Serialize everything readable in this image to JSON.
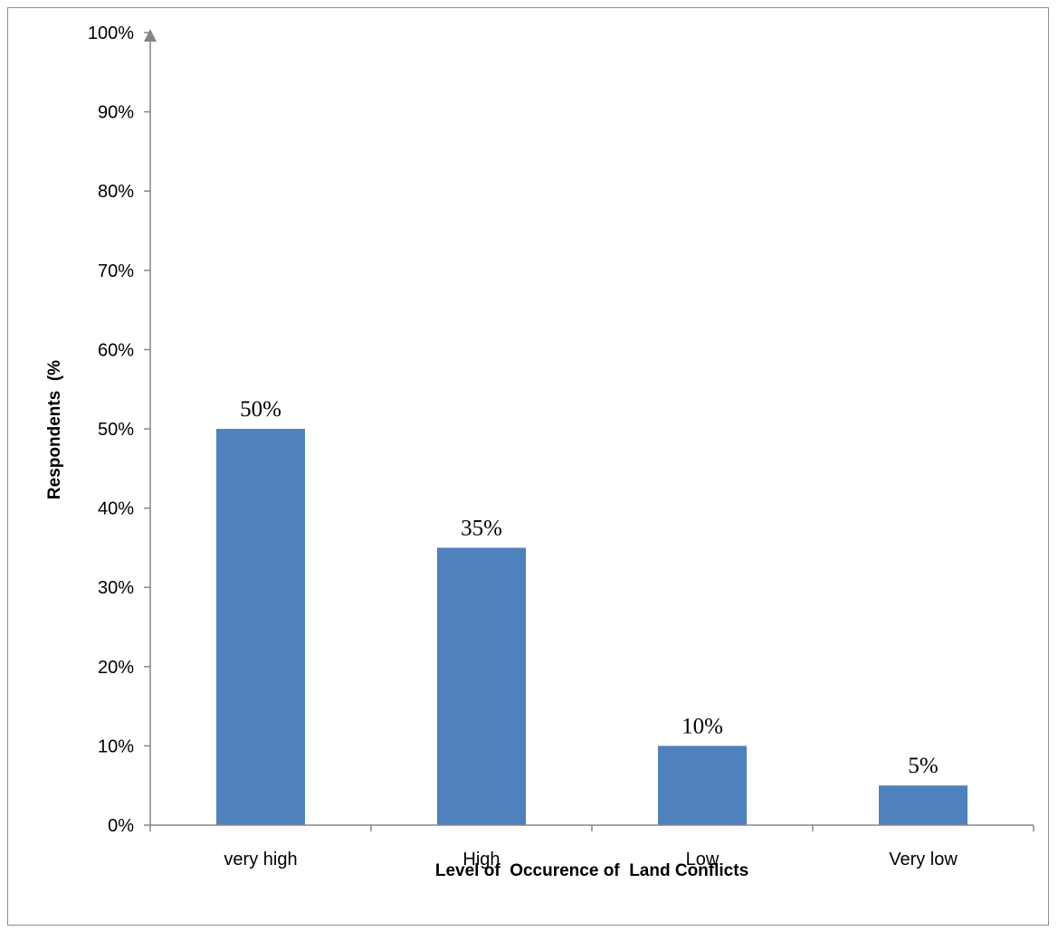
{
  "chart_data": {
    "type": "bar",
    "categories": [
      "very  high",
      "High",
      "Low",
      "Very low"
    ],
    "values": [
      50,
      35,
      10,
      5
    ],
    "data_labels": [
      "50%",
      "35%",
      "10%",
      "5%"
    ],
    "xlabel": "Level of  Occurence of  Land Conflicts",
    "ylabel": "Respondents  (%",
    "ylim": [
      0,
      100
    ],
    "yticks": [
      0,
      10,
      20,
      30,
      40,
      50,
      60,
      70,
      80,
      90,
      100
    ],
    "ytick_labels": [
      "0%",
      "10%",
      "20%",
      "30%",
      "40%",
      "50%",
      "60%",
      "70%",
      "80%",
      "90%",
      "100%"
    ],
    "grid": false,
    "legend": "none",
    "bar_color": "#4f81bd",
    "axis_color": "#868686"
  }
}
